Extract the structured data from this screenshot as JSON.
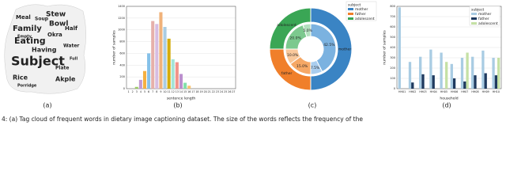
{
  "wordcloud": {
    "words": [
      "Subject",
      "Eating",
      "Family",
      "Bowl",
      "Stew",
      "Having",
      "Meal",
      "Okra",
      "Rice",
      "Akple",
      "Half",
      "Empty",
      "Porridge",
      "Water",
      "Soup",
      "Plate",
      "Full"
    ]
  },
  "subcaptions": [
    "(a)",
    "(b)",
    "(c)",
    "(d)"
  ],
  "caption": "4: (a) Tag cloud of frequent words in dietary image captioning dataset. The size of the words reflects the frequency of the",
  "chart_data": [
    {
      "type": "bar",
      "xlabel": "sentence length",
      "ylabel": "number of samples",
      "categories": [
        1,
        2,
        3,
        4,
        5,
        6,
        7,
        8,
        9,
        10,
        11,
        12,
        13,
        14,
        15,
        16,
        17,
        18,
        19,
        20,
        21,
        22,
        23,
        24,
        25,
        26,
        27
      ],
      "values": [
        0,
        0,
        30,
        150,
        300,
        600,
        1150,
        1100,
        1300,
        1050,
        850,
        500,
        450,
        250,
        100,
        50,
        0,
        0,
        0,
        0,
        0,
        0,
        0,
        0,
        0,
        0,
        0
      ],
      "colors": [
        "#7fb3d5",
        "#7fb3d5",
        "#9ccc65",
        "#c39bd3",
        "#f5b041",
        "#85c1e9",
        "#e6b0aa",
        "#d7bde2",
        "#f0b27a",
        "#a9cce3",
        "#d4ac0d",
        "#a3e4d7",
        "#f1948a",
        "#bb8fce",
        "#82e0aa",
        "#f8c471",
        "#7fb3d5",
        "#7fb3d5",
        "#7fb3d5",
        "#7fb3d5",
        "#7fb3d5",
        "#7fb3d5",
        "#7fb3d5",
        "#7fb3d5",
        "#7fb3d5",
        "#7fb3d5",
        "#7fb3d5"
      ],
      "ylim": [
        0,
        1400
      ],
      "yticks": [
        0,
        200,
        400,
        600,
        800,
        1000,
        1200,
        1400
      ],
      "grid": true
    },
    {
      "type": "pie",
      "legend_title": "subject",
      "categories": [
        "mother",
        "father",
        "adolescent"
      ],
      "values": [
        50,
        25,
        25
      ],
      "colors": [
        "#3a84c4",
        "#f07f2a",
        "#3aa655"
      ],
      "inner": {
        "values": [
          42.5,
          7.5,
          15.0,
          10.0,
          20.0,
          5.0
        ],
        "value_labels": [
          "42.5%",
          "7.5%",
          "15.0%",
          "10.0%",
          "20.0%",
          "5.0%"
        ],
        "colors": [
          "#7bb2e0",
          "#a9cdee",
          "#f6a866",
          "#f9c89b",
          "#7cc98e",
          "#b2e0bd"
        ]
      }
    },
    {
      "type": "grouped-bar",
      "xlabel": "household",
      "ylabel": "number of samples",
      "legend_title": "subject",
      "categories": [
        "HH01",
        "HH02",
        "HH03",
        "HH04",
        "HH05",
        "HH06",
        "HH07",
        "HH08",
        "HH09",
        "HH10"
      ],
      "series": [
        {
          "name": "mother",
          "color": "#a9cce3",
          "values": [
            790,
            260,
            310,
            380,
            350,
            240,
            300,
            310,
            370,
            300
          ]
        },
        {
          "name": "father",
          "color": "#1f3a5f",
          "values": [
            null,
            60,
            140,
            130,
            null,
            100,
            70,
            130,
            150,
            130
          ]
        },
        {
          "name": "adolescent",
          "color": "#c5e1a5",
          "values": [
            null,
            null,
            null,
            null,
            260,
            null,
            350,
            null,
            null,
            300
          ]
        }
      ],
      "ylim": [
        0,
        800
      ],
      "yticks": [
        0,
        100,
        200,
        300,
        400,
        500,
        600,
        700,
        800
      ],
      "grid": true
    }
  ]
}
